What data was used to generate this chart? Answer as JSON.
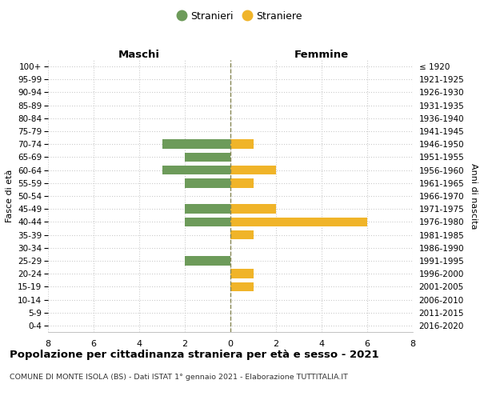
{
  "age_groups": [
    "100+",
    "95-99",
    "90-94",
    "85-89",
    "80-84",
    "75-79",
    "70-74",
    "65-69",
    "60-64",
    "55-59",
    "50-54",
    "45-49",
    "40-44",
    "35-39",
    "30-34",
    "25-29",
    "20-24",
    "15-19",
    "10-14",
    "5-9",
    "0-4"
  ],
  "birth_years": [
    "≤ 1920",
    "1921-1925",
    "1926-1930",
    "1931-1935",
    "1936-1940",
    "1941-1945",
    "1946-1950",
    "1951-1955",
    "1956-1960",
    "1961-1965",
    "1966-1970",
    "1971-1975",
    "1976-1980",
    "1981-1985",
    "1986-1990",
    "1991-1995",
    "1996-2000",
    "2001-2005",
    "2006-2010",
    "2011-2015",
    "2016-2020"
  ],
  "males": [
    0,
    0,
    0,
    0,
    0,
    0,
    -3,
    -2,
    -3,
    -2,
    0,
    -2,
    -2,
    0,
    0,
    -2,
    0,
    0,
    0,
    0,
    0
  ],
  "females": [
    0,
    0,
    0,
    0,
    0,
    0,
    1,
    0,
    2,
    1,
    0,
    2,
    6,
    1,
    0,
    0,
    1,
    1,
    0,
    0,
    0
  ],
  "male_color": "#6d9b5a",
  "female_color": "#f0b429",
  "center_line_color": "#888855",
  "grid_color": "#cccccc",
  "title": "Popolazione per cittadinanza straniera per età e sesso - 2021",
  "subtitle": "COMUNE DI MONTE ISOLA (BS) - Dati ISTAT 1° gennaio 2021 - Elaborazione TUTTITALIA.IT",
  "xlabel_left": "Maschi",
  "xlabel_right": "Femmine",
  "ylabel_left": "Fasce di età",
  "ylabel_right": "Anni di nascita",
  "legend_male": "Stranieri",
  "legend_female": "Straniere",
  "xlim": [
    -8,
    8
  ],
  "xticks": [
    -8,
    -6,
    -4,
    -2,
    0,
    2,
    4,
    6,
    8
  ],
  "xtick_labels": [
    "8",
    "6",
    "4",
    "2",
    "0",
    "2",
    "4",
    "6",
    "8"
  ],
  "bar_height": 0.72,
  "background_color": "#ffffff"
}
